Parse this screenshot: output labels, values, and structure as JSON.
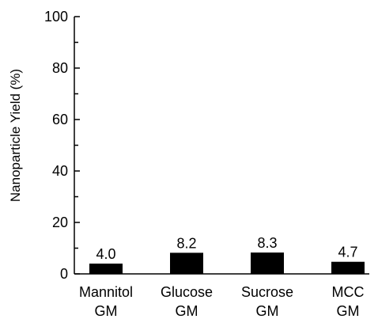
{
  "chart_data": {
    "type": "bar",
    "title": "",
    "xlabel": "",
    "ylabel": "Nanoparticle Yield (%)",
    "ylim": [
      0,
      100
    ],
    "yticks": [
      0,
      20,
      40,
      60,
      80,
      100
    ],
    "y_minor_step": 10,
    "grid": false,
    "bar_color": "#000000",
    "categories": [
      [
        "Mannitol",
        "GM"
      ],
      [
        "Glucose",
        "GM"
      ],
      [
        "Sucrose",
        "GM"
      ],
      [
        "MCC",
        "GM"
      ]
    ],
    "values": [
      4.0,
      8.2,
      8.3,
      4.7
    ],
    "value_labels": [
      "4.0",
      "8.2",
      "8.3",
      "4.7"
    ]
  }
}
